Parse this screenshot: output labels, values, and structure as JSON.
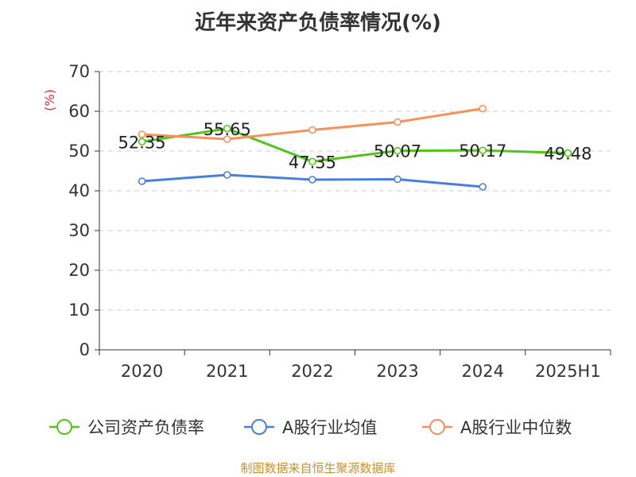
{
  "chart_data": {
    "type": "line",
    "title": "近年来资产负债率情况(%)",
    "ylabel": "(%)",
    "categories": [
      "2020",
      "2021",
      "2022",
      "2023",
      "2024",
      "2025H1"
    ],
    "ylim": [
      0,
      70
    ],
    "yticks": [
      0,
      10,
      20,
      30,
      40,
      50,
      60,
      70
    ],
    "series": [
      {
        "name": "公司资产负债率",
        "color": "#52c41a",
        "values": [
          52.35,
          55.65,
          47.35,
          50.07,
          50.17,
          49.48
        ],
        "labels": [
          "52.35",
          "55.65",
          "47.35",
          "50.07",
          "50.17",
          "49.48"
        ]
      },
      {
        "name": "A股行业均值",
        "color": "#4a7fd8",
        "values": [
          42.4,
          44.0,
          42.8,
          42.9,
          41.0,
          null
        ]
      },
      {
        "name": "A股行业中位数",
        "color": "#f5915a",
        "values": [
          54.2,
          53.0,
          55.3,
          57.3,
          60.7,
          null
        ]
      }
    ],
    "source": "制图数据来自恒生聚源数据库"
  }
}
